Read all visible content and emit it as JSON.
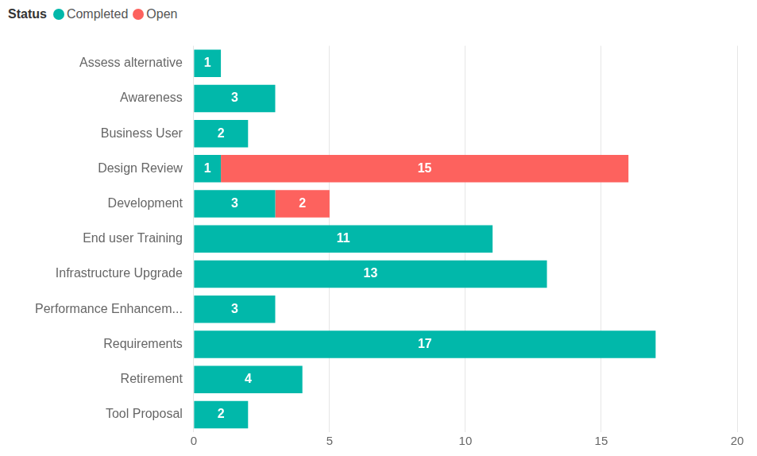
{
  "chart_data": {
    "type": "bar",
    "orientation": "horizontal",
    "stacked": true,
    "data_labels": true,
    "grid": true,
    "legend": "top-left",
    "legend_title": "Status",
    "categories": [
      "Assess alternative",
      "Awareness",
      "Business User",
      "Design Review",
      "Development",
      "End user Training",
      "Infrastructure Upgrade",
      "Performance Enhancem...",
      "Requirements",
      "Retirement",
      "Tool Proposal"
    ],
    "series": [
      {
        "name": "Completed",
        "color": "#01b8aa",
        "values": [
          1,
          3,
          2,
          1,
          3,
          11,
          13,
          3,
          17,
          4,
          2
        ]
      },
      {
        "name": "Open",
        "color": "#fd625e",
        "values": [
          null,
          null,
          null,
          15,
          2,
          null,
          null,
          null,
          null,
          null,
          null
        ]
      }
    ],
    "xlim": [
      0,
      20
    ],
    "xticks": [
      0,
      5,
      10,
      15,
      20
    ]
  }
}
